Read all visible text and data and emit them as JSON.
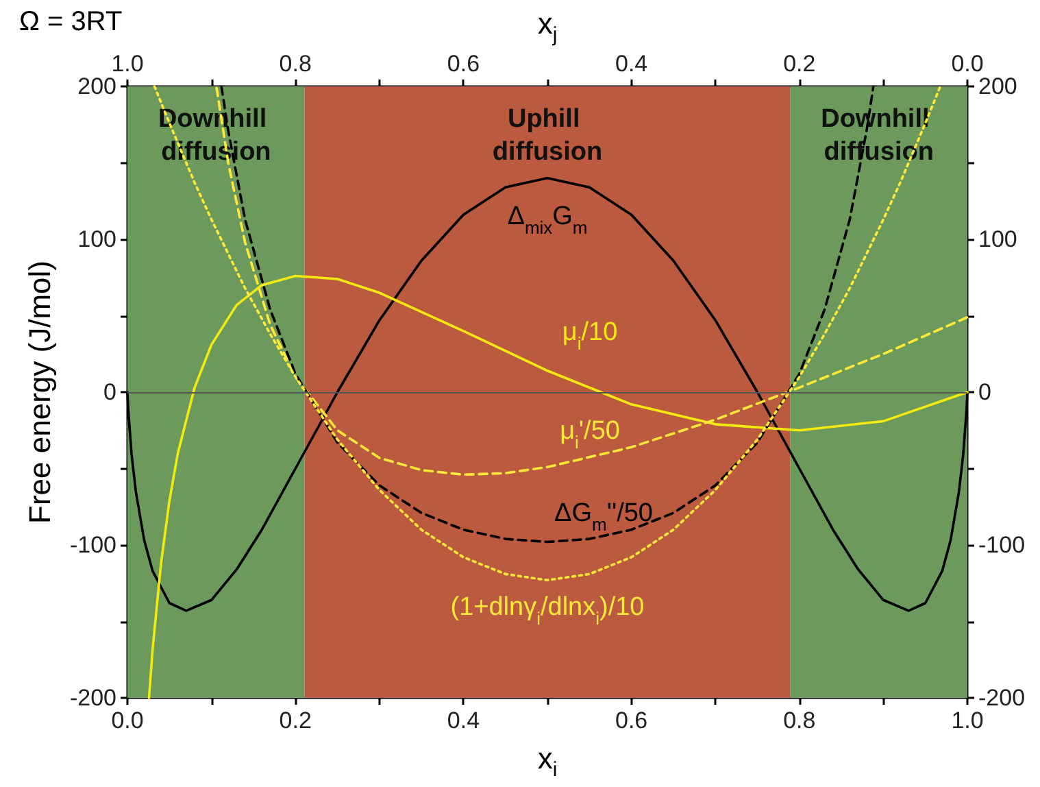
{
  "chart_data": {
    "type": "line",
    "xlabel": "x$_{i}$",
    "x2label": "x$_{j}$",
    "ylabel": "Free energy (J/mol)",
    "xlim": [
      0,
      1
    ],
    "xticks": [
      {
        "value": 0,
        "label": "0.0"
      },
      {
        "value": 0.1,
        "label": null
      },
      0.2,
      {
        "value": 0.3,
        "label": null
      },
      0.4,
      {
        "value": 0.5,
        "label": null
      },
      0.6,
      {
        "value": 0.7,
        "label": null
      },
      0.8,
      {
        "value": 0.9,
        "label": null
      },
      {
        "value": 1,
        "label": "1.0"
      }
    ],
    "x2lim": [
      1,
      0
    ],
    "x2ticks": [
      {
        "value": 1,
        "label": "1.0"
      },
      {
        "value": 0.9,
        "label": null
      },
      0.8,
      {
        "value": 0.7,
        "label": null
      },
      0.6,
      {
        "value": 0.5,
        "label": null
      },
      0.4,
      {
        "value": 0.3,
        "label": null
      },
      0.2,
      {
        "value": 0.1,
        "label": null
      },
      {
        "value": 0,
        "label": "0.0"
      }
    ],
    "ylim": [
      -200,
      200
    ],
    "yticks": [
      -200,
      {
        "value": -150,
        "label": null
      },
      -100,
      {
        "value": -50,
        "label": null
      },
      0,
      {
        "value": 50,
        "label": null
      },
      100,
      {
        "value": 150,
        "label": null
      },
      200
    ],
    "y2lim": [
      -200,
      200
    ],
    "y2ticks": [
      -200,
      {
        "value": -150,
        "label": null
      },
      -100,
      {
        "value": -50,
        "label": null
      },
      0,
      {
        "value": 50,
        "label": null
      },
      100,
      {
        "value": 150,
        "label": null
      },
      200
    ],
    "grid": false,
    "marker": "none",
    "bands": [
      {
        "axis": "x",
        "from": 0,
        "to": 0.211,
        "label": "Downhill diffusion",
        "color": "#6b9a5c"
      },
      {
        "axis": "x",
        "from": 0.211,
        "to": 0.789,
        "label": "Uphill diffusion",
        "color": "#bb5a3f"
      },
      {
        "axis": "x",
        "from": 0.789,
        "to": 1,
        "label": "Downhill diffusion",
        "color": "#6b9a5c"
      }
    ],
    "ref_lines": [
      {
        "axis": "y",
        "value": 0,
        "color": "#555555"
      }
    ],
    "series": [
      {
        "name": "Δ$_{mix}$G$_{m}$",
        "color": "#000000",
        "line_style": "solid",
        "x": [
          0,
          0.001,
          0.005,
          0.01,
          0.02,
          0.03,
          0.05,
          0.07,
          0.1,
          0.13,
          0.16,
          0.2,
          0.25,
          0.3,
          0.35,
          0.4,
          0.45,
          0.5,
          0.55,
          0.6,
          0.65,
          0.7,
          0.75,
          0.8,
          0.84,
          0.87,
          0.9,
          0.93,
          0.95,
          0.97,
          0.98,
          0.99,
          0.995,
          0.999,
          1
        ],
        "values": [
          0,
          -12,
          -41,
          -65,
          -97,
          -117,
          -138,
          -143,
          -136,
          -116,
          -90,
          -50,
          0,
          47,
          86,
          116,
          134,
          140,
          134,
          116,
          86,
          47,
          0,
          -50,
          -90,
          -116,
          -136,
          -143,
          -138,
          -117,
          -97,
          -65,
          -41,
          -12,
          0
        ]
      },
      {
        "name": "μ$_{i}$/10",
        "color": "#f5ea10",
        "line_style": "solid",
        "x": [
          0.0257,
          0.03,
          0.04,
          0.05,
          0.06,
          0.08,
          0.1,
          0.13,
          0.16,
          0.2,
          0.25,
          0.3,
          0.4,
          0.5,
          0.6,
          0.7,
          0.8,
          0.9,
          1
        ],
        "values": [
          -200,
          -168,
          -112,
          -71,
          -40,
          3,
          31,
          57,
          70,
          76,
          74,
          65,
          40,
          14,
          -8,
          -21,
          -25,
          -19,
          0
        ]
      },
      {
        "name": "μ$_{i}$'/50",
        "color": "#ffe838",
        "line_style": "dashed",
        "x": [
          0.1062,
          0.12,
          0.14,
          0.17,
          0.2,
          0.25,
          0.3,
          0.35,
          0.4,
          0.45,
          0.5,
          0.6,
          0.7,
          0.8,
          0.9,
          1
        ],
        "values": [
          199,
          150,
          98,
          44,
          10,
          -25,
          -43,
          -51,
          -54,
          -53,
          -49,
          -36,
          -18,
          3,
          25,
          49
        ]
      },
      {
        "name": "ΔG$_{m}$''/50",
        "color": "#000000",
        "line_style": "dashed",
        "x": [
          0.1119,
          0.12,
          0.14,
          0.17,
          0.2,
          0.25,
          0.3,
          0.35,
          0.4,
          0.45,
          0.5,
          0.55,
          0.6,
          0.65,
          0.7,
          0.75,
          0.8,
          0.83,
          0.86,
          0.88,
          0.8881
        ],
        "values": [
          200,
          171,
          113,
          54,
          12,
          -33,
          -61,
          -79,
          -90,
          -96,
          -98,
          -96,
          -90,
          -79,
          -61,
          -33,
          12,
          54,
          113,
          171,
          200
        ]
      },
      {
        "name": "(1+dlnγ$_{i}$/dlnx$_{i}$)/10",
        "color": "#ffe838",
        "line_style": "dotted",
        "x": [
          0.0322,
          0.05,
          0.08,
          0.1,
          0.14,
          0.17,
          0.2,
          0.25,
          0.3,
          0.35,
          0.4,
          0.45,
          0.5,
          0.55,
          0.6,
          0.65,
          0.7,
          0.75,
          0.8,
          0.83,
          0.86,
          0.9,
          0.92,
          0.95,
          0.9678
        ],
        "values": [
          200,
          176,
          137,
          113,
          68,
          38,
          10,
          -31,
          -64,
          -90,
          -108,
          -119,
          -123,
          -119,
          -108,
          -90,
          -64,
          -31,
          10,
          38,
          68,
          113,
          137,
          176,
          200
        ]
      }
    ],
    "annotations": [
      "Ω = 3RT"
    ]
  }
}
